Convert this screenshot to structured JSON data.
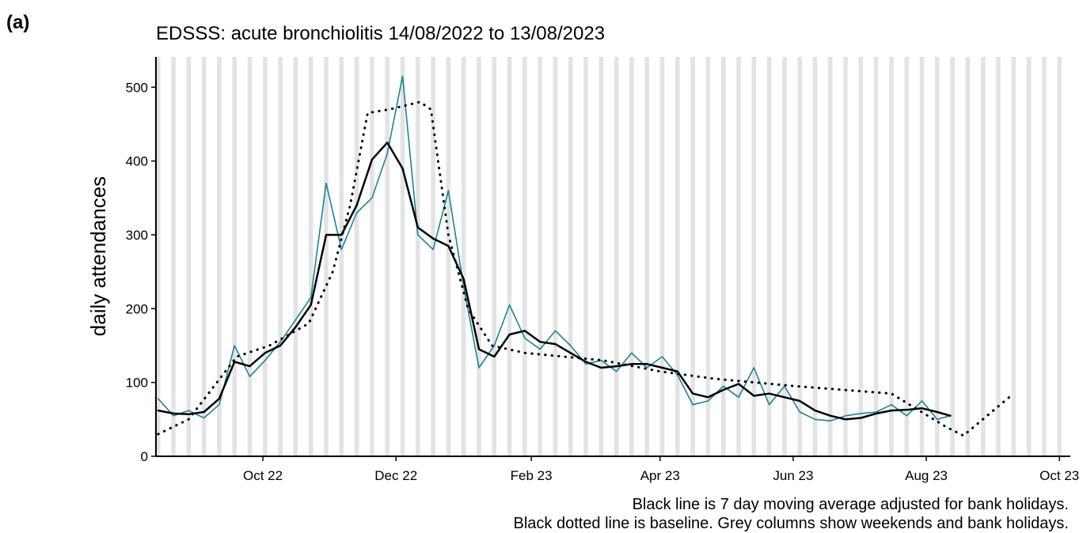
{
  "panel_label": "(a)",
  "chart_data": {
    "type": "line",
    "title": "EDSSS: acute bronchiolitis 14/08/2022 to 13/08/2023",
    "y_label": "daily attendances",
    "notes": [
      "Black line is 7 day moving average adjusted for bank holidays.",
      "Black dotted line is baseline. Grey columns show weekends and bank holidays."
    ],
    "xlim": [
      "2022-08-13",
      "2023-10-06"
    ],
    "xticks": [
      {
        "value": "2022-10-01",
        "label": "Oct 22"
      },
      {
        "value": "2022-12-01",
        "label": "Dec 22"
      },
      {
        "value": "2023-02-01",
        "label": "Feb 23"
      },
      {
        "value": "2023-04-01",
        "label": "Apr 23"
      },
      {
        "value": "2023-06-01",
        "label": "Jun 23"
      },
      {
        "value": "2023-08-01",
        "label": "Aug 23"
      },
      {
        "value": "2023-10-01",
        "label": "Oct 23"
      }
    ],
    "ylim": [
      0,
      541
    ],
    "yticks": [
      0,
      100,
      200,
      300,
      400,
      500
    ],
    "weekend_columns": true,
    "series": [
      {
        "color": "#1a8496",
        "style": "solid",
        "x": [
          "2022-08-14",
          "2022-08-21",
          "2022-08-28",
          "2022-09-04",
          "2022-09-11",
          "2022-09-18",
          "2022-09-25",
          "2022-10-02",
          "2022-10-09",
          "2022-10-16",
          "2022-10-23",
          "2022-10-30",
          "2022-11-06",
          "2022-11-13",
          "2022-11-20",
          "2022-11-27",
          "2022-12-04",
          "2022-12-11",
          "2022-12-18",
          "2022-12-25",
          "2023-01-01",
          "2023-01-08",
          "2023-01-15",
          "2023-01-22",
          "2023-01-29",
          "2023-02-05",
          "2023-02-12",
          "2023-02-19",
          "2023-02-26",
          "2023-03-05",
          "2023-03-12",
          "2023-03-19",
          "2023-03-26",
          "2023-04-02",
          "2023-04-09",
          "2023-04-16",
          "2023-04-23",
          "2023-04-30",
          "2023-05-07",
          "2023-05-14",
          "2023-05-21",
          "2023-05-28",
          "2023-06-04",
          "2023-06-11",
          "2023-06-18",
          "2023-06-25",
          "2023-07-02",
          "2023-07-09",
          "2023-07-16",
          "2023-07-23",
          "2023-07-30",
          "2023-08-06",
          "2023-08-12"
        ],
        "values": [
          78,
          55,
          62,
          52,
          70,
          150,
          108,
          130,
          155,
          185,
          215,
          370,
          280,
          330,
          350,
          410,
          515,
          300,
          280,
          360,
          230,
          120,
          150,
          205,
          160,
          145,
          170,
          150,
          125,
          130,
          115,
          140,
          120,
          135,
          110,
          70,
          75,
          95,
          80,
          120,
          70,
          95,
          60,
          50,
          48,
          55,
          58,
          60,
          70,
          55,
          75,
          50,
          55
        ]
      },
      {
        "color": "#000000",
        "style": "solid",
        "x": [
          "2022-08-14",
          "2022-08-21",
          "2022-08-28",
          "2022-09-04",
          "2022-09-11",
          "2022-09-18",
          "2022-09-25",
          "2022-10-02",
          "2022-10-09",
          "2022-10-16",
          "2022-10-23",
          "2022-10-30",
          "2022-11-06",
          "2022-11-13",
          "2022-11-20",
          "2022-11-27",
          "2022-12-04",
          "2022-12-11",
          "2022-12-18",
          "2022-12-25",
          "2023-01-01",
          "2023-01-08",
          "2023-01-15",
          "2023-01-22",
          "2023-01-29",
          "2023-02-05",
          "2023-02-12",
          "2023-02-19",
          "2023-02-26",
          "2023-03-05",
          "2023-03-12",
          "2023-03-19",
          "2023-03-26",
          "2023-04-02",
          "2023-04-09",
          "2023-04-16",
          "2023-04-23",
          "2023-04-30",
          "2023-05-07",
          "2023-05-14",
          "2023-05-21",
          "2023-05-28",
          "2023-06-04",
          "2023-06-11",
          "2023-06-18",
          "2023-06-25",
          "2023-07-02",
          "2023-07-09",
          "2023-07-16",
          "2023-07-23",
          "2023-07-30",
          "2023-08-06",
          "2023-08-12"
        ],
        "values": [
          62,
          58,
          57,
          60,
          78,
          128,
          122,
          140,
          150,
          175,
          205,
          300,
          300,
          340,
          402,
          425,
          390,
          310,
          295,
          285,
          240,
          145,
          135,
          165,
          170,
          155,
          152,
          140,
          128,
          120,
          122,
          125,
          125,
          120,
          115,
          85,
          80,
          90,
          98,
          82,
          85,
          80,
          75,
          62,
          55,
          50,
          52,
          58,
          62,
          63,
          65,
          60,
          55
        ]
      },
      {
        "color": "#000000",
        "style": "dotted",
        "x": [
          "2022-08-14",
          "2022-08-28",
          "2022-09-19",
          "2022-10-04",
          "2022-10-22",
          "2022-11-02",
          "2022-11-10",
          "2022-11-18",
          "2022-11-28",
          "2022-12-12",
          "2022-12-17",
          "2022-12-25",
          "2023-01-03",
          "2023-01-14",
          "2023-01-29",
          "2023-03-06",
          "2023-04-01",
          "2023-04-26",
          "2023-06-02",
          "2023-07-16",
          "2023-08-10",
          "2023-08-18",
          "2023-09-08"
        ],
        "values": [
          30,
          50,
          135,
          150,
          180,
          250,
          340,
          465,
          470,
          480,
          470,
          300,
          200,
          150,
          140,
          130,
          115,
          105,
          95,
          85,
          40,
          28,
          80
        ]
      }
    ]
  }
}
